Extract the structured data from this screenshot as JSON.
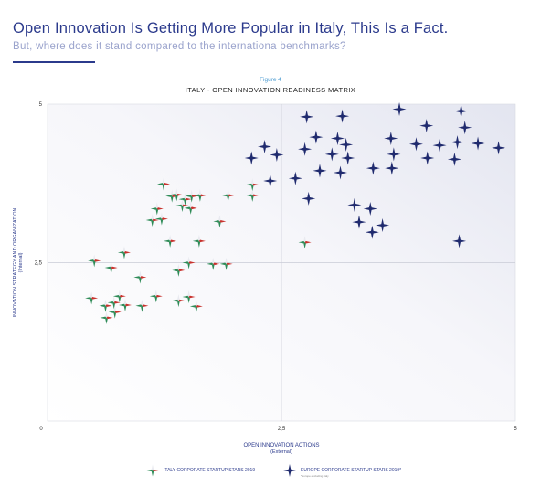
{
  "header": {
    "title": "Open Innovation Is Getting More Popular in Italy, This Is a Fact.",
    "subtitle": "But, where does it stand compared to the internationa  benchmarks?"
  },
  "figure_label": "Figure 4",
  "colors": {
    "brand": "#2b3a8c",
    "italy_green": "#2e8b57",
    "italy_red": "#c8322d",
    "europe_star": "#1f2a6e",
    "grid": "#c9cbd6"
  },
  "legend": {
    "italy": "ITALY CORPORATE STARTUP STARS 2019",
    "europe": "EUROPE CORPORATE STARTUP STARS 2019*",
    "note": "*Europe excluding Italy"
  },
  "chart_data": {
    "type": "scatter",
    "title": "ITALY - OPEN INNOVATION READINESS MATRIX",
    "xlabel": "OPEN INNOVATION ACTIONS",
    "xlabel_sub": "(External)",
    "ylabel": "INNOVATION STRATEGY AND ORGANIZATION",
    "ylabel_sub": "(Internal)",
    "xlim": [
      0,
      5
    ],
    "ylim": [
      0,
      5
    ],
    "xticks": [
      0,
      2.5,
      5
    ],
    "xtick_labels": [
      "0",
      "2,5",
      "5"
    ],
    "yticks": [
      2.5,
      5
    ],
    "ytick_labels": [
      "2,5",
      "5"
    ],
    "divider": [
      2.5,
      2.5
    ],
    "series": [
      {
        "name": "ITALY CORPORATE STARTUP STARS 2019",
        "points": [
          [
            1.24,
            3.74
          ],
          [
            1.33,
            3.55
          ],
          [
            1.38,
            3.57
          ],
          [
            1.47,
            3.5
          ],
          [
            1.54,
            3.55
          ],
          [
            1.63,
            3.56
          ],
          [
            1.44,
            3.4
          ],
          [
            1.53,
            3.36
          ],
          [
            1.17,
            3.35
          ],
          [
            1.12,
            3.17
          ],
          [
            1.22,
            3.19
          ],
          [
            1.84,
            3.15
          ],
          [
            1.31,
            2.84
          ],
          [
            1.62,
            2.84
          ],
          [
            0.82,
            2.66
          ],
          [
            0.5,
            2.53
          ],
          [
            0.68,
            2.42
          ],
          [
            1.51,
            2.5
          ],
          [
            1.77,
            2.48
          ],
          [
            1.91,
            2.48
          ],
          [
            1.4,
            2.38
          ],
          [
            0.99,
            2.27
          ],
          [
            0.47,
            1.94
          ],
          [
            0.62,
            1.82
          ],
          [
            0.71,
            1.87
          ],
          [
            0.77,
            1.97
          ],
          [
            0.83,
            1.83
          ],
          [
            1.16,
            1.97
          ],
          [
            0.63,
            1.63
          ],
          [
            0.72,
            1.72
          ],
          [
            1.4,
            1.9
          ],
          [
            1.51,
            1.96
          ],
          [
            1.59,
            1.81
          ],
          [
            1.01,
            1.82
          ],
          [
            1.93,
            3.56
          ],
          [
            2.19,
            3.56
          ],
          [
            2.19,
            3.73
          ],
          [
            2.75,
            2.82
          ]
        ]
      },
      {
        "name": "EUROPE CORPORATE STARTUP STARS 2019*",
        "points": [
          [
            2.77,
            4.8
          ],
          [
            3.15,
            4.81
          ],
          [
            3.76,
            4.92
          ],
          [
            4.42,
            4.89
          ],
          [
            4.05,
            4.66
          ],
          [
            4.46,
            4.63
          ],
          [
            2.87,
            4.48
          ],
          [
            3.1,
            4.46
          ],
          [
            2.32,
            4.33
          ],
          [
            2.75,
            4.29
          ],
          [
            3.04,
            4.21
          ],
          [
            3.67,
            4.46
          ],
          [
            3.19,
            4.36
          ],
          [
            3.94,
            4.37
          ],
          [
            4.19,
            4.35
          ],
          [
            4.38,
            4.4
          ],
          [
            4.6,
            4.38
          ],
          [
            4.82,
            4.31
          ],
          [
            2.18,
            4.15
          ],
          [
            2.45,
            4.2
          ],
          [
            3.21,
            4.15
          ],
          [
            3.7,
            4.21
          ],
          [
            4.06,
            4.15
          ],
          [
            4.35,
            4.13
          ],
          [
            2.91,
            3.95
          ],
          [
            3.13,
            3.92
          ],
          [
            3.48,
            3.99
          ],
          [
            3.68,
            3.99
          ],
          [
            2.65,
            3.83
          ],
          [
            2.38,
            3.79
          ],
          [
            2.79,
            3.51
          ],
          [
            3.28,
            3.41
          ],
          [
            3.45,
            3.35
          ],
          [
            3.33,
            3.14
          ],
          [
            3.58,
            3.09
          ],
          [
            3.47,
            2.98
          ],
          [
            4.4,
            2.84
          ]
        ]
      }
    ],
    "grid": false,
    "legend_position": "bottom-center"
  }
}
